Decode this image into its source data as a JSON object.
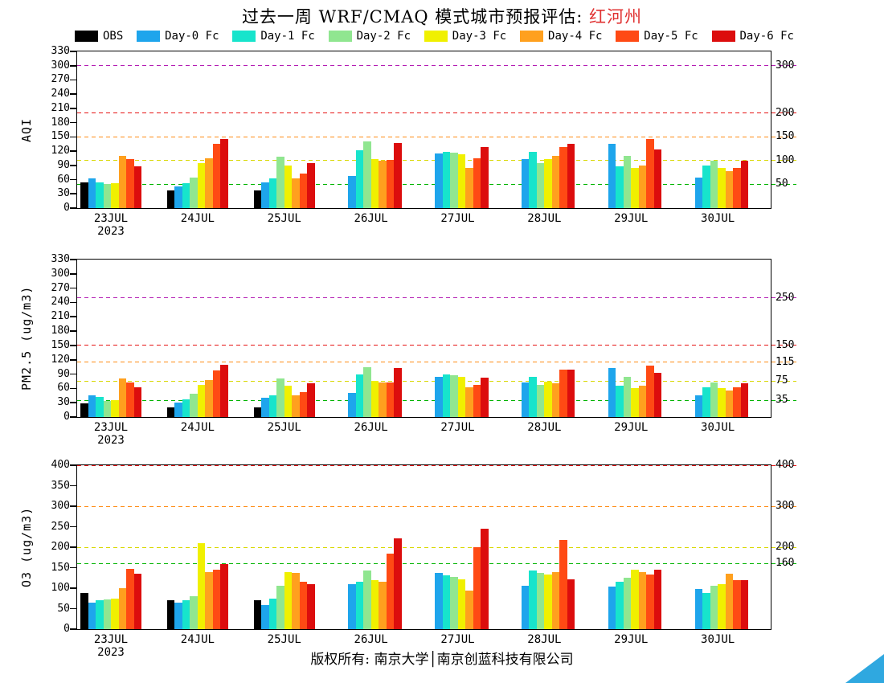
{
  "page": {
    "title_prefix": "过去一周 WRF/CMAQ 模式城市预报评估: ",
    "title_region": "红河州",
    "footer": "版权所有: 南京大学│南京创蓝科技有限公司",
    "corner_triangle_color": "#2fa8e0"
  },
  "legend": {
    "items": [
      {
        "label": "OBS",
        "color": "#000000"
      },
      {
        "label": "Day-0 Fc",
        "color": "#1ea5ec"
      },
      {
        "label": "Day-1 Fc",
        "color": "#17e4cc"
      },
      {
        "label": "Day-2 Fc",
        "color": "#90e690"
      },
      {
        "label": "Day-3 Fc",
        "color": "#f0f000"
      },
      {
        "label": "Day-4 Fc",
        "color": "#ffa01e"
      },
      {
        "label": "Day-5 Fc",
        "color": "#ff4a14"
      },
      {
        "label": "Day-6 Fc",
        "color": "#dc0d0d"
      }
    ]
  },
  "year_label": "2023",
  "chart_data": [
    {
      "id": "aqi",
      "type": "bar",
      "title": "",
      "xlabel": "",
      "ylabel": "AQI",
      "ylim": [
        0,
        330
      ],
      "yticks": [
        0,
        30,
        60,
        90,
        120,
        150,
        180,
        210,
        240,
        270,
        300,
        330
      ],
      "grid": "dashed-reference-lines",
      "legend_position": "top",
      "categories": [
        "23JUL",
        "24JUL",
        "25JUL",
        "26JUL",
        "27JUL",
        "28JUL",
        "29JUL",
        "30JUL"
      ],
      "series": [
        {
          "name": "OBS",
          "color": "#000000",
          "values": [
            55,
            38,
            37,
            null,
            null,
            null,
            null,
            null
          ]
        },
        {
          "name": "Day-0 Fc",
          "color": "#1ea5ec",
          "values": [
            62,
            45,
            55,
            68,
            115,
            103,
            135,
            65
          ]
        },
        {
          "name": "Day-1 Fc",
          "color": "#17e4cc",
          "values": [
            55,
            52,
            62,
            122,
            118,
            118,
            88,
            90
          ]
        },
        {
          "name": "Day-2 Fc",
          "color": "#90e690",
          "values": [
            50,
            65,
            108,
            140,
            117,
            95,
            110,
            100
          ]
        },
        {
          "name": "Day-3 Fc",
          "color": "#f0f000",
          "values": [
            52,
            95,
            90,
            103,
            113,
            103,
            85,
            85
          ]
        },
        {
          "name": "Day-4 Fc",
          "color": "#ffa01e",
          "values": [
            110,
            105,
            62,
            100,
            85,
            110,
            90,
            78
          ]
        },
        {
          "name": "Day-5 Fc",
          "color": "#ff4a14",
          "values": [
            103,
            135,
            72,
            102,
            105,
            128,
            145,
            85
          ]
        },
        {
          "name": "Day-6 Fc",
          "color": "#dc0d0d",
          "values": [
            88,
            145,
            95,
            137,
            128,
            135,
            123,
            100
          ]
        }
      ],
      "reference_lines": [
        {
          "value": 50,
          "label": "50",
          "color": "#00b400"
        },
        {
          "value": 100,
          "label": "100",
          "color": "#d8d800"
        },
        {
          "value": 150,
          "label": "150",
          "color": "#ff8c14"
        },
        {
          "value": 200,
          "label": "200",
          "color": "#e61414"
        },
        {
          "value": 300,
          "label": "300",
          "color": "#b41eb4"
        }
      ]
    },
    {
      "id": "pm25",
      "type": "bar",
      "title": "",
      "xlabel": "",
      "ylabel": "PM2.5 (ug/m3)",
      "ylim": [
        0,
        330
      ],
      "yticks": [
        0,
        30,
        60,
        90,
        120,
        150,
        180,
        210,
        240,
        270,
        300,
        330
      ],
      "grid": "dashed-reference-lines",
      "legend_position": "top",
      "categories": [
        "23JUL",
        "24JUL",
        "25JUL",
        "26JUL",
        "27JUL",
        "28JUL",
        "29JUL",
        "30JUL"
      ],
      "series": [
        {
          "name": "OBS",
          "color": "#000000",
          "values": [
            28,
            20,
            20,
            null,
            null,
            null,
            null,
            null
          ]
        },
        {
          "name": "Day-0 Fc",
          "color": "#1ea5ec",
          "values": [
            45,
            30,
            40,
            50,
            85,
            72,
            102,
            45
          ]
        },
        {
          "name": "Day-1 Fc",
          "color": "#17e4cc",
          "values": [
            42,
            37,
            45,
            90,
            90,
            85,
            65,
            62
          ]
        },
        {
          "name": "Day-2 Fc",
          "color": "#90e690",
          "values": [
            33,
            48,
            80,
            105,
            88,
            68,
            85,
            72
          ]
        },
        {
          "name": "Day-3 Fc",
          "color": "#f0f000",
          "values": [
            35,
            68,
            65,
            75,
            85,
            74,
            60,
            60
          ]
        },
        {
          "name": "Day-4 Fc",
          "color": "#ffa01e",
          "values": [
            80,
            78,
            45,
            72,
            62,
            70,
            66,
            55
          ]
        },
        {
          "name": "Day-5 Fc",
          "color": "#ff4a14",
          "values": [
            73,
            98,
            52,
            73,
            67,
            100,
            108,
            62
          ]
        },
        {
          "name": "Day-6 Fc",
          "color": "#dc0d0d",
          "values": [
            63,
            110,
            70,
            103,
            82,
            100,
            92,
            70
          ]
        }
      ],
      "reference_lines": [
        {
          "value": 35,
          "label": "35",
          "color": "#00b400"
        },
        {
          "value": 75,
          "label": "75",
          "color": "#d8d800"
        },
        {
          "value": 115,
          "label": "115",
          "color": "#ff8c14"
        },
        {
          "value": 150,
          "label": "150",
          "color": "#e61414"
        },
        {
          "value": 250,
          "label": "250",
          "color": "#b41eb4"
        }
      ]
    },
    {
      "id": "o3",
      "type": "bar",
      "title": "",
      "xlabel": "",
      "ylabel": "O3 (ug/m3)",
      "ylim": [
        0,
        400
      ],
      "yticks": [
        0,
        50,
        100,
        150,
        200,
        250,
        300,
        350,
        400
      ],
      "grid": "dashed-reference-lines",
      "legend_position": "top",
      "categories": [
        "23JUL",
        "24JUL",
        "25JUL",
        "26JUL",
        "27JUL",
        "28JUL",
        "29JUL",
        "30JUL"
      ],
      "series": [
        {
          "name": "OBS",
          "color": "#000000",
          "values": [
            88,
            70,
            70,
            null,
            null,
            null,
            null,
            null
          ]
        },
        {
          "name": "Day-0 Fc",
          "color": "#1ea5ec",
          "values": [
            65,
            65,
            58,
            110,
            138,
            105,
            103,
            98
          ]
        },
        {
          "name": "Day-1 Fc",
          "color": "#17e4cc",
          "values": [
            70,
            70,
            75,
            115,
            132,
            143,
            115,
            88
          ]
        },
        {
          "name": "Day-2 Fc",
          "color": "#90e690",
          "values": [
            73,
            80,
            105,
            143,
            128,
            138,
            125,
            105
          ]
        },
        {
          "name": "Day-3 Fc",
          "color": "#f0f000",
          "values": [
            75,
            210,
            140,
            120,
            122,
            133,
            145,
            110
          ]
        },
        {
          "name": "Day-4 Fc",
          "color": "#ffa01e",
          "values": [
            100,
            140,
            138,
            115,
            95,
            140,
            140,
            135
          ]
        },
        {
          "name": "Day-5 Fc",
          "color": "#ff4a14",
          "values": [
            148,
            145,
            115,
            185,
            200,
            218,
            133,
            120
          ]
        },
        {
          "name": "Day-6 Fc",
          "color": "#dc0d0d",
          "values": [
            135,
            158,
            110,
            222,
            245,
            122,
            145,
            120
          ]
        }
      ],
      "reference_lines": [
        {
          "value": 160,
          "label": "160",
          "color": "#00b400"
        },
        {
          "value": 200,
          "label": "200",
          "color": "#d8d800"
        },
        {
          "value": 300,
          "label": "300",
          "color": "#ff8c14"
        },
        {
          "value": 400,
          "label": "400",
          "color": "#e61414"
        }
      ]
    }
  ]
}
